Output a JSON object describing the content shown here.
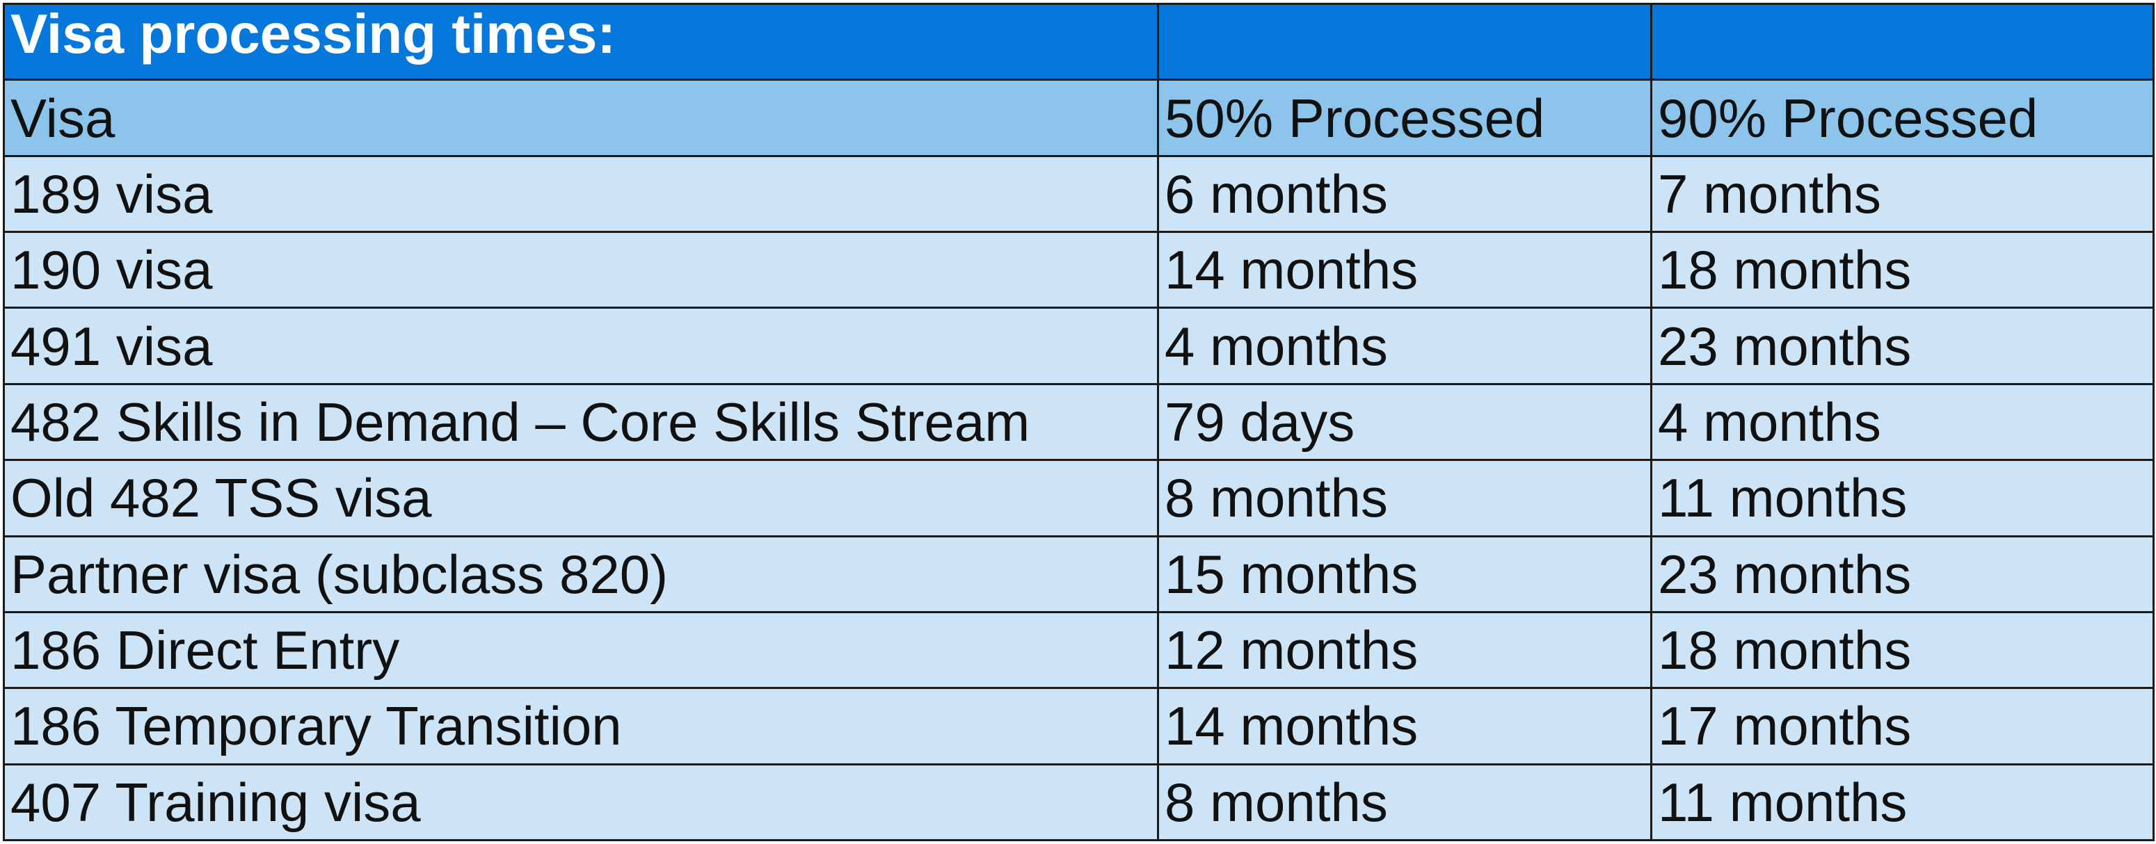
{
  "table": {
    "title": "Visa processing times:",
    "headers": [
      "Visa",
      "50% Processed",
      "90% Processed"
    ],
    "rows": [
      [
        "189 visa",
        "6 months",
        "7 months"
      ],
      [
        "190 visa",
        "14 months",
        "18 months"
      ],
      [
        "491 visa",
        "4 months",
        "23 months"
      ],
      [
        "482 Skills in Demand – Core Skills Stream",
        "79 days",
        "4 months"
      ],
      [
        "Old 482 TSS visa",
        "8 months",
        "11 months"
      ],
      [
        "Partner visa (subclass 820)",
        "15 months",
        "23 months"
      ],
      [
        "186 Direct Entry",
        "12 months",
        "18 months"
      ],
      [
        "186 Temporary Transition",
        "14 months",
        "17 months"
      ],
      [
        "407 Training visa",
        "8 months",
        "11 months"
      ]
    ]
  },
  "colors": {
    "title_bg": "#0678DB",
    "header_bg": "#8DC4EB",
    "row_bg": "#CCE4F5",
    "border": "#1a1a1a"
  }
}
